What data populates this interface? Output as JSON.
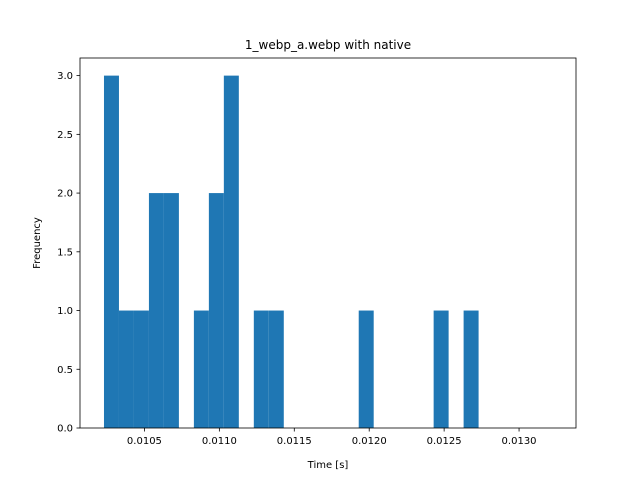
{
  "chart_data": {
    "type": "bar",
    "title": "1_webp_a.webp with native",
    "xlabel": "Time [s]",
    "ylabel": "Frequency",
    "xlim": [
      0.01007,
      0.01338
    ],
    "ylim": [
      0,
      3.15
    ],
    "bin_width": 0.0001,
    "bins": [
      {
        "x0": 0.01023,
        "count": 3
      },
      {
        "x0": 0.01033,
        "count": 1
      },
      {
        "x0": 0.01043,
        "count": 1
      },
      {
        "x0": 0.01053,
        "count": 2
      },
      {
        "x0": 0.01063,
        "count": 2
      },
      {
        "x0": 0.01073,
        "count": 0
      },
      {
        "x0": 0.01083,
        "count": 1
      },
      {
        "x0": 0.01093,
        "count": 2
      },
      {
        "x0": 0.01103,
        "count": 3
      },
      {
        "x0": 0.01113,
        "count": 0
      },
      {
        "x0": 0.01123,
        "count": 1
      },
      {
        "x0": 0.01133,
        "count": 1
      },
      {
        "x0": 0.01143,
        "count": 0
      },
      {
        "x0": 0.01153,
        "count": 0
      },
      {
        "x0": 0.01163,
        "count": 0
      },
      {
        "x0": 0.01173,
        "count": 0
      },
      {
        "x0": 0.01183,
        "count": 0
      },
      {
        "x0": 0.01193,
        "count": 1
      },
      {
        "x0": 0.01203,
        "count": 0
      },
      {
        "x0": 0.01213,
        "count": 0
      },
      {
        "x0": 0.01223,
        "count": 0
      },
      {
        "x0": 0.01233,
        "count": 0
      },
      {
        "x0": 0.01243,
        "count": 1
      },
      {
        "x0": 0.01253,
        "count": 0
      },
      {
        "x0": 0.01263,
        "count": 1
      }
    ],
    "xticks": [
      {
        "value": 0.0105,
        "label": "0.0105"
      },
      {
        "value": 0.011,
        "label": "0.0110"
      },
      {
        "value": 0.0115,
        "label": "0.0115"
      },
      {
        "value": 0.012,
        "label": "0.0120"
      },
      {
        "value": 0.0125,
        "label": "0.0125"
      },
      {
        "value": 0.013,
        "label": "0.0130"
      }
    ],
    "yticks": [
      {
        "value": 0,
        "label": "0.0"
      },
      {
        "value": 0.5,
        "label": "0.5"
      },
      {
        "value": 1,
        "label": "1.0"
      },
      {
        "value": 1.5,
        "label": "1.5"
      },
      {
        "value": 2,
        "label": "2.0"
      },
      {
        "value": 2.5,
        "label": "2.5"
      },
      {
        "value": 3,
        "label": "3.0"
      }
    ],
    "grid": false,
    "bar_color": "#1f77b4"
  }
}
